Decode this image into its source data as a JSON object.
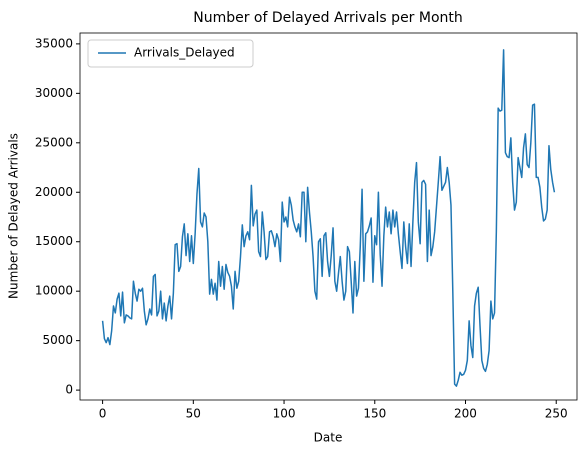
{
  "chart_data": {
    "type": "line",
    "title": "Number of Delayed Arrivals per Month",
    "x_label": "Date",
    "y_label": "Number of Delayed Arrivals",
    "series": [
      {
        "name": "Arrivals_Delayed",
        "color": "#1f77b4",
        "values": [
          7000,
          5200,
          4800,
          5300,
          4600,
          6000,
          8500,
          7800,
          9200,
          9800,
          7500,
          9900,
          6800,
          7600,
          7500,
          7300,
          7200,
          11000,
          9800,
          9000,
          10200,
          10000,
          10300,
          8000,
          6600,
          7200,
          8200,
          7600,
          11500,
          11700,
          7500,
          8000,
          10000,
          7200,
          8800,
          7000,
          8500,
          9500,
          7200,
          9800,
          14700,
          14800,
          12000,
          12500,
          15500,
          16800,
          13600,
          15800,
          13000,
          15600,
          12800,
          15800,
          19800,
          22400,
          17000,
          16500,
          17900,
          17500,
          15000,
          9700,
          11200,
          9700,
          10800,
          9100,
          13000,
          10500,
          12500,
          10200,
          12700,
          11900,
          11500,
          10500,
          8200,
          12000,
          10300,
          11000,
          13500,
          16700,
          14500,
          15600,
          16000,
          15200,
          20700,
          16600,
          17800,
          18200,
          14000,
          13500,
          18000,
          16000,
          13200,
          13500,
          16000,
          16100,
          15500,
          14500,
          15800,
          15200,
          13000,
          19000,
          17000,
          17500,
          16500,
          19500,
          18700,
          17200,
          16500,
          16000,
          16800,
          15500,
          20000,
          20000,
          15000,
          20500,
          18000,
          16000,
          13500,
          10000,
          9200,
          15000,
          15300,
          11500,
          15600,
          15900,
          13000,
          11500,
          13600,
          16400,
          11000,
          10000,
          11800,
          13500,
          11000,
          9100,
          10000,
          14500,
          14000,
          11000,
          7800,
          13000,
          9500,
          10300,
          14500,
          20300,
          11000,
          15800,
          16000,
          16600,
          17400,
          10900,
          15600,
          14700,
          20000,
          13700,
          10500,
          15600,
          18500,
          16500,
          18000,
          15800,
          18200,
          16500,
          18000,
          15800,
          14000,
          12300,
          17000,
          14500,
          12800,
          16800,
          12500,
          17000,
          21000,
          23000,
          17000,
          14800,
          21000,
          21200,
          20800,
          13000,
          18200,
          13600,
          14500,
          16000,
          18500,
          21000,
          23600,
          20200,
          20600,
          21000,
          22500,
          21000,
          18700,
          10000,
          600,
          400,
          1000,
          1800,
          1500,
          1600,
          2000,
          3000,
          7000,
          4500,
          3300,
          8500,
          9800,
          10400,
          6500,
          3000,
          2200,
          1900,
          2600,
          4000,
          9000,
          7200,
          7800,
          16000,
          28500,
          28200,
          28300,
          34400,
          24000,
          23600,
          23500,
          25500,
          21000,
          18200,
          19000,
          23500,
          22500,
          21500,
          24500,
          25900,
          22800,
          22500,
          25000,
          28800,
          28900,
          21500,
          21500,
          20500,
          18500,
          17100,
          17300,
          18200,
          24700,
          22300,
          21000,
          20000
        ]
      }
    ],
    "xlim": [
      -12.45,
      261.45
    ],
    "xticks": [
      0,
      50,
      100,
      150,
      200,
      250
    ],
    "ylim": [
      -1000,
      36100
    ],
    "yticks": [
      0,
      5000,
      10000,
      15000,
      20000,
      25000,
      30000,
      35000
    ],
    "legend": "upper left",
    "grid": false
  }
}
